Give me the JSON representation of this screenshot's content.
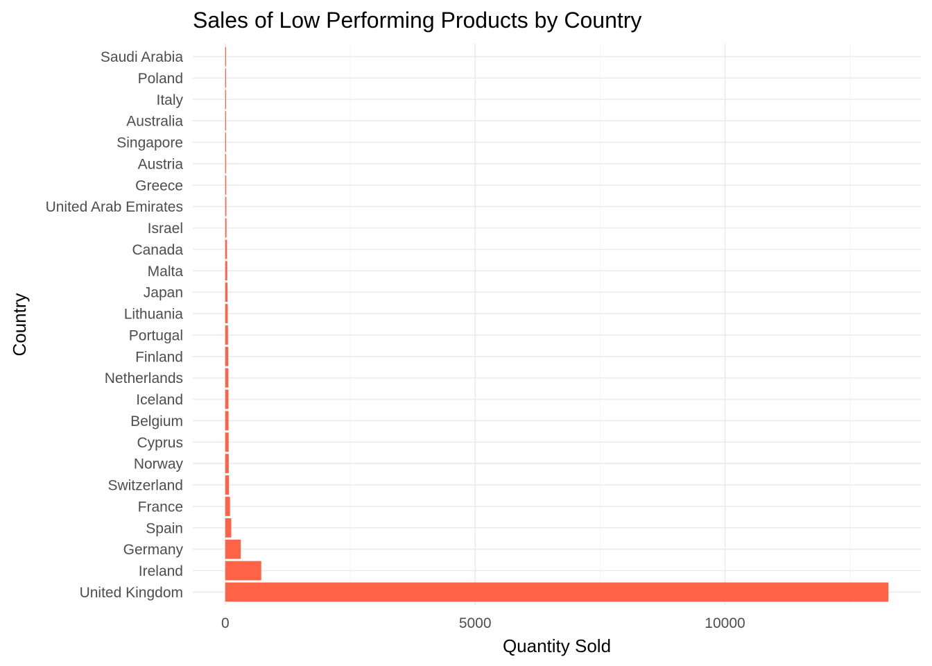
{
  "chart_data": {
    "type": "bar",
    "orientation": "horizontal",
    "title": "Sales of Low Performing Products by Country",
    "xlabel": "Quantity Sold",
    "ylabel": "Country",
    "categories": [
      "United Kingdom",
      "Ireland",
      "Germany",
      "Spain",
      "France",
      "Switzerland",
      "Norway",
      "Cyprus",
      "Belgium",
      "Iceland",
      "Netherlands",
      "Finland",
      "Portugal",
      "Lithuania",
      "Japan",
      "Malta",
      "Canada",
      "Israel",
      "United Arab Emirates",
      "Greece",
      "Austria",
      "Singapore",
      "Australia",
      "Italy",
      "Poland",
      "Saudi Arabia"
    ],
    "values": [
      13270,
      720,
      310,
      120,
      95,
      75,
      70,
      68,
      66,
      64,
      62,
      60,
      55,
      50,
      45,
      40,
      35,
      25,
      22,
      20,
      18,
      16,
      14,
      12,
      10,
      6
    ],
    "xticks": [
      0,
      5000,
      10000
    ],
    "xlim": [
      -650,
      13920
    ],
    "bar_color": "#FF6347",
    "grid": true,
    "legend": "none"
  }
}
